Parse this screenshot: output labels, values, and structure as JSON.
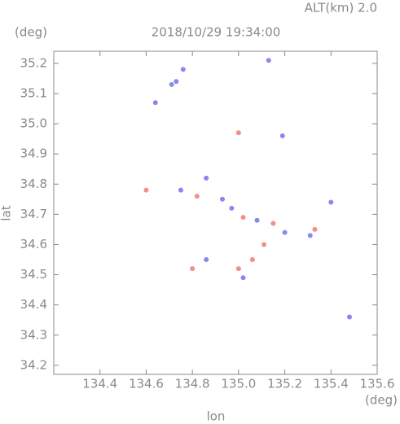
{
  "chart_data": {
    "type": "scatter",
    "title": "2018/10/29 19:34:00",
    "annotation": "ALT(km) 2.0",
    "y_unit": "(deg)",
    "x_unit": "(deg)",
    "x_label": "lon",
    "y_label": "lat",
    "xlim": [
      134.2,
      135.6
    ],
    "ylim": [
      34.17,
      35.24
    ],
    "xticks": [
      134.4,
      134.6,
      134.8,
      {
        "value": 135.0,
        "label": "135.0"
      },
      135.2,
      135.4,
      135.6
    ],
    "yticks": [
      34.2,
      34.3,
      34.4,
      34.5,
      34.6,
      34.7,
      34.8,
      34.9,
      {
        "value": 35.0,
        "label": "35.0"
      },
      35.1,
      35.2
    ],
    "x": [
      134.73,
      134.76,
      134.71,
      134.64,
      135.13,
      135.0,
      135.19,
      134.6,
      134.75,
      134.86,
      134.82,
      134.93,
      134.97,
      135.02,
      135.08,
      135.15,
      135.2,
      135.11,
      135.4,
      135.31,
      135.33,
      134.8,
      134.86,
      135.0,
      135.06,
      135.02,
      135.48
    ],
    "values": [
      35.14,
      35.18,
      35.13,
      35.07,
      35.21,
      34.97,
      34.96,
      34.78,
      34.78,
      34.82,
      34.76,
      34.75,
      34.72,
      34.69,
      34.68,
      34.67,
      34.64,
      34.6,
      34.74,
      34.63,
      34.65,
      34.52,
      34.55,
      34.52,
      34.55,
      34.49,
      34.36
    ],
    "point_colors": [
      "#6a6af0",
      "#6a6af0",
      "#6a6af0",
      "#6a6af0",
      "#6a6af0",
      "#f07070",
      "#6a6af0",
      "#f07070",
      "#6a6af0",
      "#6a6af0",
      "#f07070",
      "#6a6af0",
      "#6a6af0",
      "#f07070",
      "#6a6af0",
      "#f07070",
      "#6a6af0",
      "#f07070",
      "#6a6af0",
      "#6a6af0",
      "#f07070",
      "#f07070",
      "#6a6af0",
      "#f07070",
      "#f07070",
      "#6a6af0",
      "#6a6af0"
    ]
  }
}
